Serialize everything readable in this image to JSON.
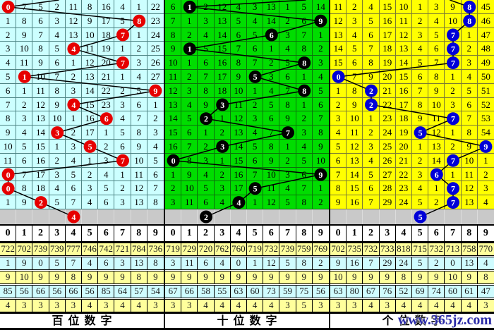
{
  "watermark": "www.365jz.com",
  "chart_data": {
    "type": "table",
    "panels": [
      "百位数字",
      "十位数字",
      "个位数字"
    ],
    "drawn_digit_sequences": {
      "hundreds": [
        0,
        8,
        7,
        4,
        7,
        1,
        9,
        4,
        6,
        3,
        5,
        7,
        0,
        0,
        2
      ],
      "tens": [
        1,
        9,
        6,
        1,
        8,
        5,
        8,
        3,
        2,
        7,
        3,
        0,
        9,
        5,
        4
      ],
      "units": [
        8,
        8,
        7,
        7,
        7,
        0,
        2,
        2,
        7,
        5,
        9,
        7,
        6,
        7,
        7
      ]
    },
    "pending_marks": {
      "hundreds": 4,
      "tens": 2,
      "units": 5
    }
  },
  "panels": [
    {
      "id": "hundreds",
      "footer_label": "百位数字",
      "theme": {
        "bg": "#ccffff",
        "grid_line": "#4e8585",
        "circle": "#e60000"
      },
      "digit_headers": [
        "0",
        "1",
        "2",
        "3",
        "4",
        "5",
        "6",
        "7",
        "8",
        "9"
      ],
      "entry_col": 3.6,
      "rows": [
        [
          0,
          7,
          5,
          2,
          11,
          8,
          16,
          4,
          1,
          22
        ],
        [
          1,
          8,
          6,
          3,
          12,
          9,
          17,
          5,
          8,
          23
        ],
        [
          2,
          9,
          7,
          4,
          13,
          10,
          18,
          7,
          1,
          24
        ],
        [
          3,
          10,
          8,
          5,
          4,
          11,
          19,
          1,
          2,
          25
        ],
        [
          4,
          11,
          9,
          6,
          1,
          12,
          20,
          7,
          3,
          26
        ],
        [
          5,
          1,
          10,
          7,
          2,
          13,
          21,
          1,
          4,
          27
        ],
        [
          6,
          1,
          11,
          8,
          3,
          14,
          22,
          2,
          5,
          9
        ],
        [
          7,
          2,
          12,
          9,
          4,
          15,
          23,
          3,
          6,
          1
        ],
        [
          8,
          3,
          13,
          10,
          1,
          16,
          6,
          4,
          7,
          2
        ],
        [
          9,
          4,
          14,
          3,
          2,
          17,
          1,
          5,
          8,
          3
        ],
        [
          10,
          5,
          15,
          1,
          3,
          5,
          2,
          6,
          9,
          4
        ],
        [
          11,
          6,
          16,
          2,
          4,
          1,
          3,
          7,
          10,
          5
        ],
        [
          0,
          7,
          17,
          3,
          5,
          2,
          4,
          1,
          11,
          6
        ],
        [
          0,
          8,
          18,
          4,
          6,
          3,
          5,
          2,
          12,
          7
        ],
        [
          1,
          9,
          2,
          5,
          7,
          4,
          6,
          3,
          13,
          8
        ]
      ],
      "circles": [
        0,
        8,
        7,
        4,
        7,
        1,
        9,
        4,
        6,
        3,
        5,
        7,
        0,
        0,
        2
      ],
      "gray_circle": 4,
      "stats": [
        [
          722,
          702,
          739,
          739,
          777,
          746,
          742,
          721,
          784,
          736
        ],
        [
          1,
          9,
          0,
          5,
          7,
          4,
          6,
          3,
          13,
          8
        ],
        [
          9,
          10,
          9,
          9,
          8,
          9,
          9,
          9,
          8,
          9
        ],
        [
          85,
          56,
          66,
          56,
          66,
          56,
          85,
          64,
          57,
          54
        ],
        [
          4,
          3,
          3,
          3,
          3,
          4,
          3,
          4,
          4,
          3
        ]
      ]
    },
    {
      "id": "tens",
      "footer_label": "十位数字",
      "theme": {
        "bg": "#00dd00",
        "grid_line": "#0b710b",
        "circle": "#000000"
      },
      "digit_headers": [
        "0",
        "1",
        "2",
        "3",
        "4",
        "5",
        "6",
        "7",
        "8",
        "9"
      ],
      "entry_col": 8.6,
      "rows": [
        [
          6,
          1,
          2,
          12,
          4,
          3,
          13,
          1,
          5,
          14
        ],
        [
          7,
          1,
          3,
          13,
          5,
          4,
          14,
          2,
          6,
          9
        ],
        [
          8,
          2,
          4,
          14,
          6,
          5,
          6,
          3,
          7,
          1
        ],
        [
          9,
          1,
          5,
          15,
          7,
          6,
          1,
          4,
          8,
          2
        ],
        [
          10,
          1,
          6,
          16,
          8,
          7,
          2,
          5,
          8,
          3
        ],
        [
          11,
          2,
          7,
          17,
          9,
          5,
          3,
          6,
          1,
          4
        ],
        [
          12,
          3,
          8,
          18,
          10,
          1,
          4,
          7,
          8,
          5
        ],
        [
          13,
          4,
          9,
          3,
          11,
          2,
          5,
          8,
          1,
          6
        ],
        [
          14,
          5,
          2,
          1,
          12,
          3,
          6,
          9,
          2,
          7
        ],
        [
          15,
          6,
          1,
          2,
          13,
          4,
          7,
          7,
          3,
          8
        ],
        [
          16,
          7,
          2,
          3,
          14,
          5,
          8,
          1,
          4,
          9
        ],
        [
          0,
          8,
          3,
          1,
          15,
          6,
          9,
          2,
          5,
          10
        ],
        [
          1,
          9,
          4,
          2,
          16,
          7,
          10,
          3,
          6,
          9
        ],
        [
          2,
          10,
          5,
          3,
          17,
          5,
          11,
          4,
          7,
          1
        ],
        [
          3,
          11,
          6,
          4,
          4,
          1,
          12,
          5,
          8,
          2
        ]
      ],
      "circles": [
        1,
        9,
        6,
        1,
        8,
        5,
        8,
        3,
        2,
        7,
        3,
        0,
        9,
        5,
        4
      ],
      "gray_circle": 2,
      "stats": [
        [
          719,
          729,
          720,
          762,
          760,
          719,
          732,
          739,
          759,
          769
        ],
        [
          3,
          11,
          6,
          4,
          0,
          1,
          12,
          5,
          8,
          2
        ],
        [
          9,
          9,
          9,
          9,
          9,
          9,
          9,
          9,
          9,
          9
        ],
        [
          67,
          66,
          58,
          55,
          63,
          60,
          73,
          59,
          75,
          56
        ],
        [
          3,
          3,
          4,
          4,
          4,
          4,
          4,
          3,
          5,
          3
        ]
      ]
    },
    {
      "id": "units",
      "footer_label": "个位数字",
      "theme": {
        "bg": "#ffff00",
        "grid_line": "#7c7c33",
        "circle": "#0000d8"
      },
      "digit_headers": [
        "0",
        "1",
        "2",
        "3",
        "4",
        "5",
        "6",
        "7",
        "8",
        "9"
      ],
      "entry_col": 7.3,
      "rows": [
        [
          11,
          2,
          4,
          15,
          10,
          1,
          3,
          9,
          8,
          45
        ],
        [
          12,
          3,
          5,
          16,
          11,
          2,
          4,
          10,
          8,
          46
        ],
        [
          13,
          4,
          6,
          17,
          12,
          3,
          5,
          7,
          1,
          47
        ],
        [
          14,
          5,
          7,
          18,
          13,
          4,
          6,
          7,
          2,
          48
        ],
        [
          15,
          6,
          8,
          19,
          14,
          5,
          7,
          7,
          3,
          49
        ],
        [
          0,
          7,
          9,
          20,
          15,
          6,
          8,
          1,
          4,
          50
        ],
        [
          1,
          8,
          2,
          21,
          16,
          7,
          9,
          2,
          5,
          51
        ],
        [
          2,
          9,
          2,
          22,
          17,
          8,
          10,
          3,
          6,
          52
        ],
        [
          3,
          10,
          1,
          23,
          18,
          9,
          11,
          7,
          7,
          53
        ],
        [
          4,
          11,
          2,
          24,
          19,
          5,
          12,
          1,
          8,
          54
        ],
        [
          5,
          12,
          3,
          25,
          20,
          1,
          13,
          2,
          9,
          9
        ],
        [
          6,
          13,
          4,
          26,
          21,
          2,
          14,
          7,
          10,
          1
        ],
        [
          7,
          14,
          5,
          27,
          22,
          3,
          6,
          1,
          11,
          2
        ],
        [
          8,
          15,
          6,
          28,
          23,
          4,
          1,
          7,
          12,
          3
        ],
        [
          9,
          16,
          7,
          29,
          24,
          5,
          2,
          7,
          13,
          4
        ]
      ],
      "circles": [
        8,
        8,
        7,
        7,
        7,
        0,
        2,
        2,
        7,
        5,
        9,
        7,
        6,
        7,
        7
      ],
      "gray_circle": 5,
      "stats": [
        [
          702,
          735,
          732,
          733,
          818,
          715,
          732,
          713,
          758,
          770
        ],
        [
          9,
          16,
          7,
          29,
          24,
          5,
          2,
          0,
          13,
          4
        ],
        [
          10,
          9,
          9,
          9,
          8,
          9,
          9,
          10,
          9,
          8
        ],
        [
          63,
          80,
          67,
          76,
          52,
          69,
          74,
          60,
          61,
          47
        ],
        [
          3,
          3,
          4,
          3,
          4,
          4,
          4,
          4,
          4,
          3
        ]
      ]
    }
  ]
}
